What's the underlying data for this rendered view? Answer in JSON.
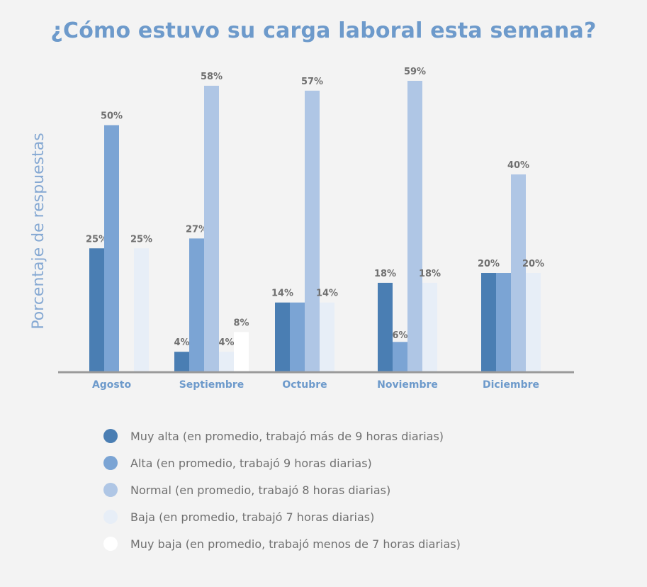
{
  "chart_data": {
    "type": "bar",
    "title": "¿Cómo estuvo su carga laboral esta semana?",
    "ylabel": "Porcentaje de respuestas",
    "xlabel": "",
    "ylim": [
      0,
      60
    ],
    "grid": false,
    "legend_position": "bottom",
    "categories": [
      "Agosto",
      "Septiembre",
      "Octubre",
      "Noviembre",
      "Diciembre"
    ],
    "series": [
      {
        "name": "Muy alta (en promedio, trabajó más de 9 horas diarias)",
        "color": "#4a7eb3",
        "values": [
          25,
          4,
          14,
          18,
          20
        ],
        "labels": [
          "25%",
          "4%",
          "14%",
          "18%",
          "20%"
        ]
      },
      {
        "name": "Alta (en promedio, trabajó 9 horas diarias)",
        "color": "#7ba4d4",
        "values": [
          50,
          27,
          14,
          6,
          20
        ],
        "labels": [
          "50%",
          "27%",
          "",
          "6%",
          ""
        ]
      },
      {
        "name": "Normal (en promedio, trabajó 8 horas diarias)",
        "color": "#afc6e5",
        "values": [
          0,
          58,
          57,
          59,
          40
        ],
        "labels": [
          "",
          "58%",
          "57%",
          "59%",
          "40%"
        ]
      },
      {
        "name": "Baja (en promedio, trabajó 7 horas diarias)",
        "color": "#e7eef7",
        "values": [
          25,
          4,
          14,
          18,
          20
        ],
        "labels": [
          "25%",
          "4%",
          "14%",
          "18%",
          "20%"
        ]
      },
      {
        "name": "Muy baja (en promedio, trabajó menos de 7 horas diarias)",
        "color": "#ffffff",
        "values": [
          0,
          8,
          0,
          0,
          0
        ],
        "labels": [
          "",
          "8%",
          "",
          "",
          ""
        ]
      }
    ]
  }
}
